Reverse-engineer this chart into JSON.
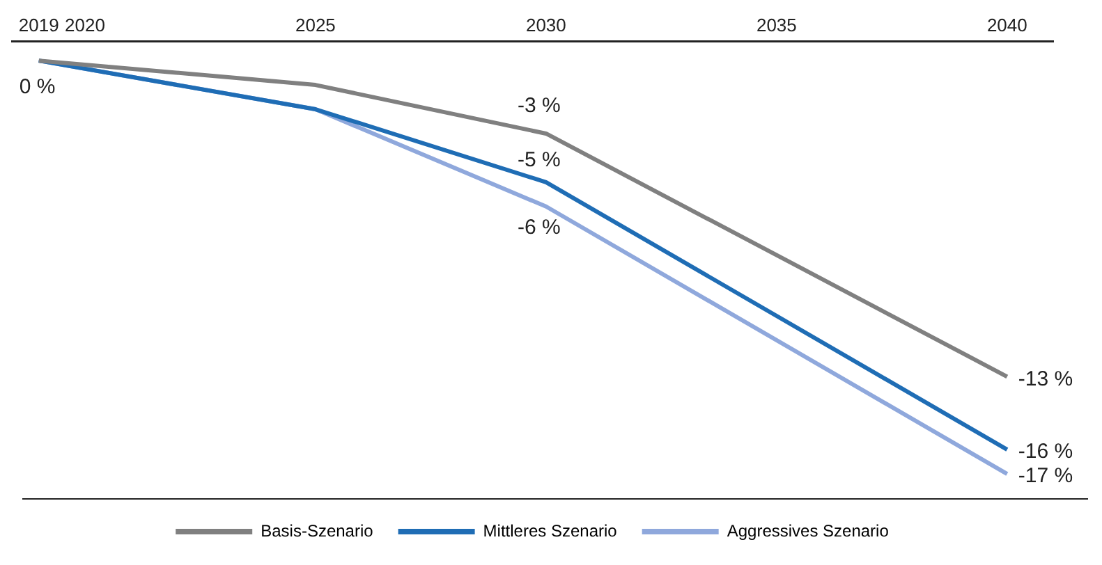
{
  "chart_data": {
    "type": "line",
    "x": [
      2019,
      2025,
      2030,
      2040
    ],
    "xlim": [
      2018.4,
      2041
    ],
    "xticks": [
      2019,
      2020,
      2025,
      2030,
      2035,
      2040
    ],
    "ylim": [
      -18,
      0.8
    ],
    "legend": "bottom",
    "grid": false,
    "marker": "none",
    "line_style": "solid",
    "series": [
      {
        "name": "Basis-Szenario",
        "color": "#808080",
        "values": [
          0,
          -1,
          -3,
          -13
        ],
        "value_labels": [
          "0 %",
          null,
          "-3 %",
          "-13 %"
        ]
      },
      {
        "name": "Mittleres Szenario",
        "color": "#1f6db5",
        "values": [
          0,
          -2,
          -5,
          -16
        ],
        "value_labels": [
          null,
          null,
          "-5 %",
          "-16 %"
        ]
      },
      {
        "name": "Aggressives Szenario",
        "color": "#8fa8dc",
        "values": [
          0,
          -2,
          -6,
          -17
        ],
        "value_labels": [
          null,
          null,
          "-6 %",
          "-17 %"
        ]
      }
    ]
  }
}
